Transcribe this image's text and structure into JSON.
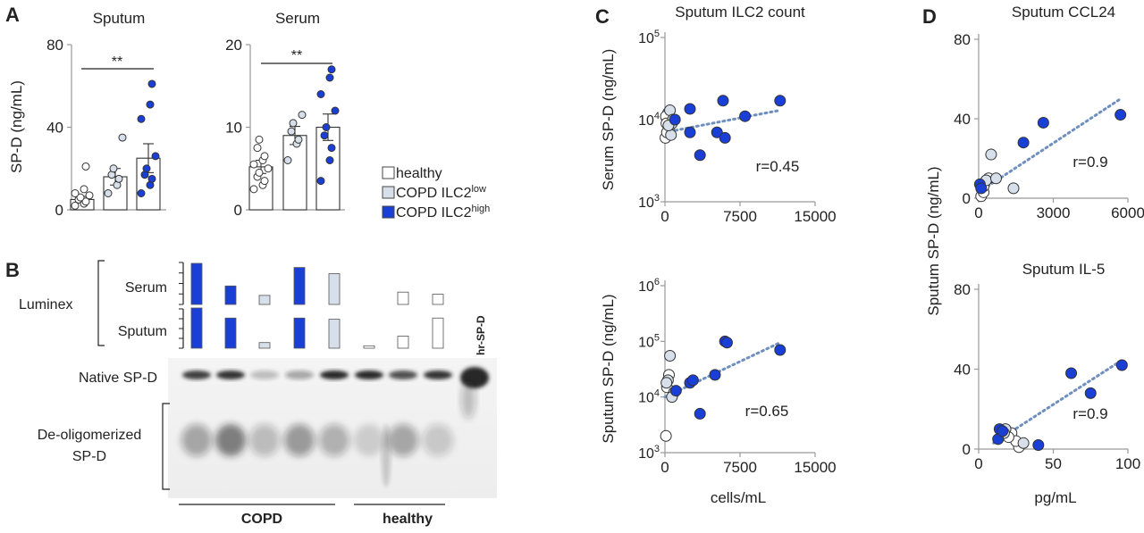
{
  "colors": {
    "healthy": "#ffffff",
    "low": "#d6dfea",
    "high": "#1a3fd6",
    "trend": "#6f8fbf",
    "axis": "#999999",
    "text": "#222222"
  },
  "panel_labels": {
    "a": "A",
    "b": "B",
    "c": "C",
    "d": "D"
  },
  "legend": {
    "healthy": "healthy",
    "low_base": "COPD ILC2",
    "low_sup": "low",
    "high_base": "COPD ILC2",
    "high_sup": "high"
  },
  "panel_b": {
    "luminex": "Luminex",
    "serum": "Serum",
    "sputum": "Sputum",
    "native": "Native  SP-D",
    "deolig_1": "De-oligomerized",
    "deolig_2": "SP-D",
    "hr": "hr-SP-D",
    "copd": "COPD",
    "healthy": "healthy"
  },
  "stats": {
    "sig_sputum": "**",
    "sig_serum": "**",
    "r_c1": "r=0.45",
    "r_c2": "r=0.65",
    "r_d1": "r=0.9",
    "r_d2": "r=0.9"
  },
  "chart_data": [
    {
      "id": "A1",
      "type": "bar",
      "title": "Sputum",
      "ylabel": "SP-D (ng/mL)",
      "ylim": [
        0,
        80
      ],
      "yticks": [
        "0",
        "40",
        "80"
      ],
      "yvals": [
        0,
        40,
        80
      ],
      "categories": [
        "healthy",
        "COPD ILC2low",
        "COPD ILC2high"
      ],
      "values": [
        5,
        16,
        25
      ],
      "errors": [
        1.5,
        4,
        7
      ],
      "points": [
        [
          2,
          3,
          4,
          5,
          6,
          7,
          8,
          10,
          21
        ],
        [
          8,
          12,
          15,
          17,
          20,
          35
        ],
        [
          8,
          12,
          15,
          17,
          20,
          26,
          44,
          51,
          61
        ]
      ]
    },
    {
      "id": "A2",
      "type": "bar",
      "title": "Serum",
      "ylim": [
        0,
        20
      ],
      "yticks": [
        "0",
        "10",
        "20"
      ],
      "yvals": [
        0,
        10,
        20
      ],
      "categories": [
        "healthy",
        "COPD ILC2low",
        "COPD ILC2high"
      ],
      "values": [
        5.2,
        9,
        10
      ],
      "errors": [
        0.8,
        1.1,
        1.6
      ],
      "points": [
        [
          2.5,
          3,
          3.5,
          4,
          4.5,
          5,
          5.5,
          6,
          6.5,
          7.5,
          8.5
        ],
        [
          6,
          8,
          8.5,
          9.5,
          10.5,
          11.5
        ],
        [
          3.5,
          6,
          7.5,
          9,
          10,
          12,
          14,
          16,
          17
        ]
      ]
    },
    {
      "id": "C1",
      "type": "scatter",
      "title": "Sputum  ILC2 count",
      "ylabel": "Serum SP-D (ng/mL)",
      "xlim": [
        0,
        15000
      ],
      "xticks": [
        "0",
        "7500",
        "15000"
      ],
      "xvals": [
        0,
        7500,
        15000
      ],
      "ylog": [
        3,
        5
      ],
      "yticks_exp": [
        "3",
        "4",
        "5"
      ],
      "points_healthy": [
        [
          50,
          6000
        ],
        [
          300,
          12000
        ],
        [
          400,
          8000
        ],
        [
          100,
          11000
        ],
        [
          200,
          7000
        ],
        [
          150,
          9000
        ]
      ],
      "points_low": [
        [
          500,
          13000
        ],
        [
          700,
          9000
        ],
        [
          600,
          6500
        ],
        [
          800,
          10000
        ],
        [
          350,
          8500
        ]
      ],
      "points_high": [
        [
          1000,
          10000
        ],
        [
          2500,
          7000
        ],
        [
          2500,
          13500
        ],
        [
          3500,
          3700
        ],
        [
          5200,
          7000
        ],
        [
          5800,
          17000
        ],
        [
          6000,
          6000
        ],
        [
          8000,
          11000
        ],
        [
          11500,
          17000
        ]
      ],
      "trend": [
        [
          0,
          7000
        ],
        [
          11500,
          13000
        ]
      ]
    },
    {
      "id": "C2",
      "type": "scatter",
      "ylabel": "Sputum SP-D (ng/mL)",
      "xlabel": "cells/mL",
      "xlim": [
        0,
        15000
      ],
      "xticks": [
        "0",
        "7500",
        "15000"
      ],
      "xvals": [
        0,
        7500,
        15000
      ],
      "ylog": [
        3,
        6
      ],
      "yticks_exp": [
        "3",
        "4",
        "5",
        "6"
      ],
      "points_healthy": [
        [
          100,
          2000
        ],
        [
          200,
          15000
        ],
        [
          400,
          25000
        ]
      ],
      "points_low": [
        [
          300,
          20000
        ],
        [
          500,
          55000
        ],
        [
          900,
          12000
        ],
        [
          700,
          10000
        ],
        [
          150,
          18000
        ]
      ],
      "points_high": [
        [
          1100,
          13000
        ],
        [
          2500,
          18000
        ],
        [
          2800,
          20000
        ],
        [
          3500,
          5000
        ],
        [
          5000,
          25000
        ],
        [
          6000,
          100000
        ],
        [
          6200,
          95000
        ],
        [
          11500,
          70000
        ]
      ],
      "trend": [
        [
          0,
          10000
        ],
        [
          11500,
          95000
        ]
      ]
    },
    {
      "id": "D1",
      "type": "scatter",
      "title": "Sputum  CCL24",
      "ylabel": "Sputum SP-D (ng/mL)",
      "xlim": [
        0,
        6000
      ],
      "xticks": [
        "0",
        "3000",
        "6000"
      ],
      "xvals": [
        0,
        3000,
        6000
      ],
      "ylim": [
        0,
        80
      ],
      "yticks": [
        "0",
        "40",
        "80"
      ],
      "yvals": [
        0,
        40,
        80
      ],
      "points_healthy": [
        [
          100,
          1
        ],
        [
          200,
          3
        ],
        [
          400,
          10
        ],
        [
          200,
          6
        ]
      ],
      "points_low": [
        [
          300,
          9
        ],
        [
          500,
          22
        ],
        [
          1400,
          5
        ],
        [
          700,
          10
        ]
      ],
      "points_high": [
        [
          50,
          7
        ],
        [
          100,
          5
        ],
        [
          1800,
          28
        ],
        [
          2600,
          38
        ],
        [
          5700,
          42
        ]
      ],
      "trend": [
        [
          0,
          3
        ],
        [
          5700,
          50
        ]
      ]
    },
    {
      "id": "D2",
      "type": "scatter",
      "title": "Sputum  IL-5",
      "xlabel": "pg/mL",
      "xlim": [
        0,
        100
      ],
      "xticks": [
        "0",
        "50",
        "100"
      ],
      "xvals": [
        0,
        50,
        100
      ],
      "ylim": [
        0,
        80
      ],
      "yticks": [
        "0",
        "40",
        "80"
      ],
      "yvals": [
        0,
        40,
        80
      ],
      "points_healthy": [
        [
          27,
          1
        ],
        [
          22,
          8
        ],
        [
          25,
          4
        ],
        [
          20,
          6
        ]
      ],
      "points_low": [
        [
          30,
          3
        ],
        [
          18,
          10
        ],
        [
          17,
          8
        ]
      ],
      "points_high": [
        [
          14,
          10
        ],
        [
          13,
          5
        ],
        [
          16,
          9
        ],
        [
          40,
          2
        ],
        [
          62,
          38
        ],
        [
          75,
          28
        ],
        [
          96,
          42
        ]
      ],
      "trend": [
        [
          10,
          3
        ],
        [
          97,
          45
        ]
      ]
    },
    {
      "id": "B",
      "type": "bar",
      "title": "Luminex",
      "lanes": [
        "high",
        "high",
        "low",
        "high",
        "low",
        "healthy",
        "healthy",
        "healthy"
      ],
      "serum": [
        1.0,
        0.45,
        0.22,
        0.9,
        0.75,
        0.0,
        0.3,
        0.25
      ],
      "sputum": [
        1.0,
        0.75,
        0.14,
        0.75,
        0.72,
        0.06,
        0.3,
        0.75
      ]
    }
  ]
}
